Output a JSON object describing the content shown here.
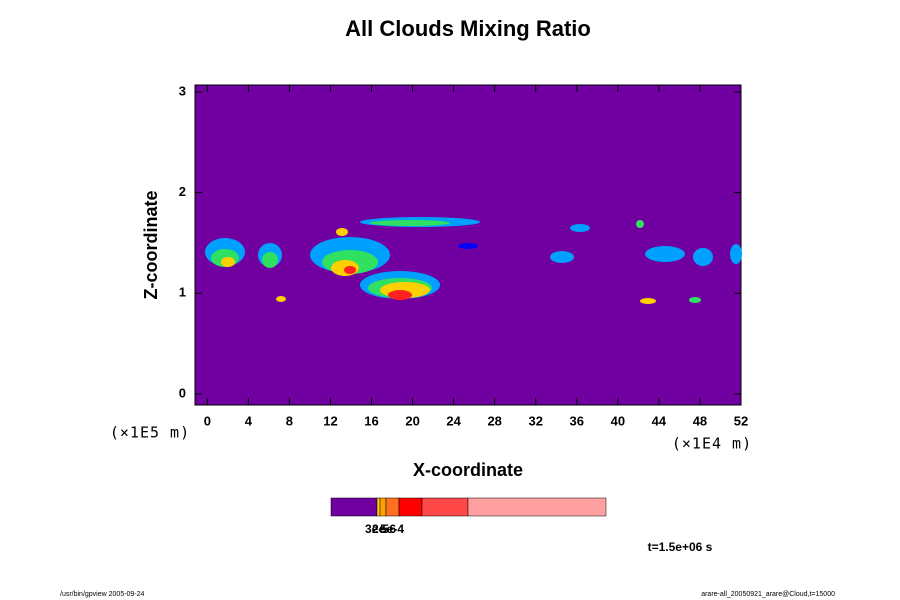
{
  "chart_data": {
    "type": "contour",
    "title": "All Clouds Mixing Ratio",
    "xlabel": "X-coordinate",
    "ylabel": "Z-coordinate",
    "xunit": "(×1E4 m)",
    "yunit": "(×1E5 m)",
    "xlim": [
      -1.2,
      52
    ],
    "ylim": [
      -0.11,
      3.07
    ],
    "xticks": [
      0,
      4,
      8,
      12,
      16,
      20,
      24,
      28,
      32,
      36,
      40,
      44,
      48,
      52
    ],
    "yticks": [
      0,
      1,
      2,
      3
    ],
    "background_color": "#7000a0",
    "colorbar_labels": [
      "3e-5",
      "2e-6",
      "5e-4"
    ],
    "time_label": "t=1.5e+06 s",
    "footer_left": "/usr/bin/gpview 2005-09-24",
    "footer_right": "arare-all_20050921_arare@Cloud,t=15000"
  }
}
